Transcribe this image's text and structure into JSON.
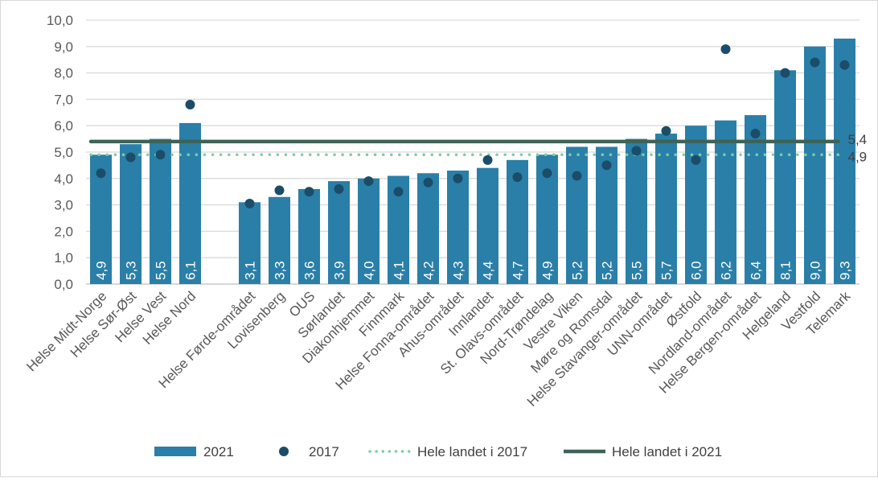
{
  "chart_data": {
    "type": "bar",
    "categories": [
      "Helse Midt-Norge",
      "Helse Sør-Øst",
      "Helse Vest",
      "Helse Nord",
      "",
      "Helse Førde-området",
      "Lovisenberg",
      "OUS",
      "Sørlandet",
      "Diakonhjemmet",
      "Finnmark",
      "Helse Fonna-området",
      "Ahus-området",
      "Innlandet",
      "St. Olavs-området",
      "Nord-Trøndelag",
      "Vestre Viken",
      "Møre og Romsdal",
      "Helse Stavanger-området",
      "UNN-området",
      "Østfold",
      "Nordland-området",
      "Helse Bergen-området",
      "Helgeland",
      "Vestfold",
      "Telemark"
    ],
    "series": [
      {
        "name": "2021",
        "type": "bar",
        "color": "#2a7fa8",
        "values": [
          4.9,
          5.3,
          5.5,
          6.1,
          null,
          3.1,
          3.3,
          3.6,
          3.9,
          4.0,
          4.1,
          4.2,
          4.3,
          4.4,
          4.7,
          4.9,
          5.2,
          5.2,
          5.5,
          5.7,
          6.0,
          6.2,
          6.4,
          8.1,
          9.0,
          9.3
        ],
        "labels": [
          "4,9",
          "5,3",
          "5,5",
          "6,1",
          "",
          "3,1",
          "3,3",
          "3,6",
          "3,9",
          "4,0",
          "4,1",
          "4,2",
          "4,3",
          "4,4",
          "4,7",
          "4,9",
          "5,2",
          "5,2",
          "5,5",
          "5,7",
          "6,0",
          "6,2",
          "6,4",
          "8,1",
          "9,0",
          "9,3"
        ]
      },
      {
        "name": "2017",
        "type": "scatter",
        "color": "#1b4d68",
        "values": [
          4.2,
          4.8,
          4.9,
          6.8,
          null,
          3.05,
          3.55,
          3.5,
          3.6,
          3.9,
          3.5,
          3.85,
          4.0,
          4.7,
          4.05,
          4.2,
          4.1,
          4.5,
          5.05,
          5.8,
          4.7,
          8.9,
          5.7,
          8.0,
          8.4,
          8.3
        ]
      },
      {
        "name": "Hele landet i 2017",
        "type": "hline",
        "style": "dotted",
        "color": "#7dcf9f",
        "value": 4.9,
        "label": "4,9"
      },
      {
        "name": "Hele landet i 2021",
        "type": "hline",
        "style": "solid",
        "color": "#3d6356",
        "value": 5.4,
        "label": "5,4"
      }
    ],
    "yticks": [
      "0,0",
      "1,0",
      "2,0",
      "3,0",
      "4,0",
      "5,0",
      "6,0",
      "7,0",
      "8,0",
      "9,0",
      "10,0"
    ],
    "ylim": [
      0,
      10
    ],
    "grid": true,
    "legend": "bottom"
  }
}
